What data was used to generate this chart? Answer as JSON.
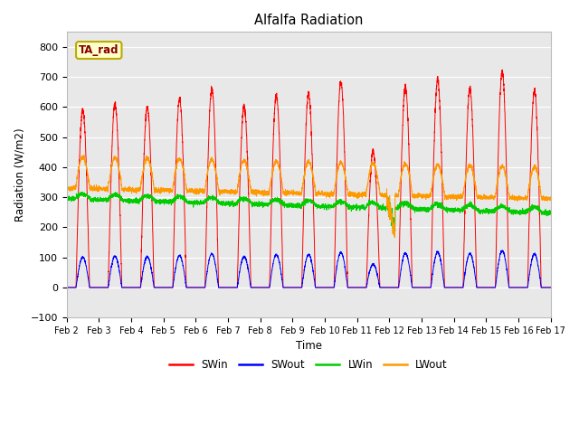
{
  "title": "Alfalfa Radiation",
  "ylabel": "Radiation (W/m2)",
  "xlabel": "Time",
  "ylim": [
    -100,
    850
  ],
  "yticks": [
    -100,
    0,
    100,
    200,
    300,
    400,
    500,
    600,
    700,
    800
  ],
  "xtick_labels": [
    "Feb 2",
    "Feb 3",
    "Feb 4",
    "Feb 5",
    "Feb 6",
    "Feb 7",
    "Feb 8",
    "Feb 9",
    "Feb 10",
    "Feb 11",
    "Feb 12",
    "Feb 13",
    "Feb 14",
    "Feb 15",
    "Feb 16",
    "Feb 17"
  ],
  "colors": {
    "SWin": "#ff0000",
    "SWout": "#0000ff",
    "LWin": "#00cc00",
    "LWout": "#ff9900"
  },
  "annotation_text": "TA_rad",
  "annotation_bg": "#ffffcc",
  "annotation_border": "#bbaa00",
  "plot_bg": "#e8e8e8",
  "fig_bg": "#ffffff",
  "n_days": 15,
  "SWin_peaks": [
    590,
    610,
    600,
    625,
    660,
    605,
    640,
    645,
    685,
    450,
    670,
    690,
    660,
    720,
    655
  ],
  "legend_entries": [
    "SWin",
    "SWout",
    "LWin",
    "LWout"
  ]
}
